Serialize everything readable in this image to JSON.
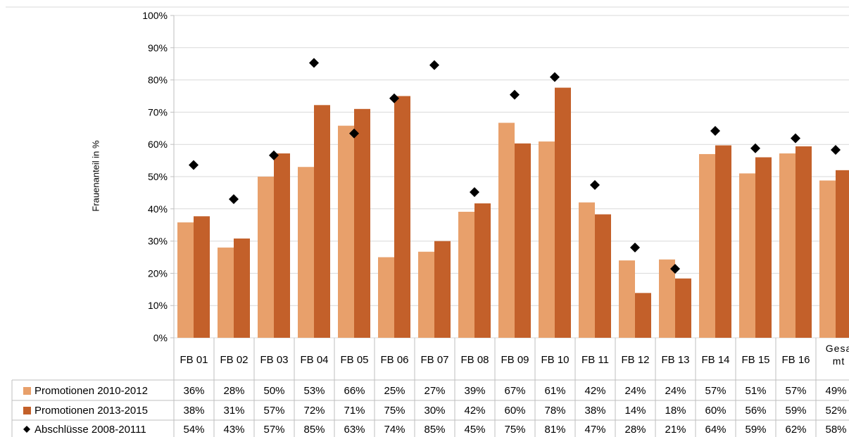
{
  "chart_data": {
    "type": "bar",
    "ylabel": "Frauenanteil in %",
    "ylim": [
      0,
      100
    ],
    "yticks": [
      "0%",
      "10%",
      "20%",
      "30%",
      "40%",
      "50%",
      "60%",
      "70%",
      "80%",
      "90%",
      "100%"
    ],
    "grid": true,
    "categories": [
      "FB 01",
      "FB 02",
      "FB 03",
      "FB 04",
      "FB 05",
      "FB 06",
      "FB 07",
      "FB 08",
      "FB 09",
      "FB 10",
      "FB 11",
      "FB 12",
      "FB 13",
      "FB 14",
      "FB 15",
      "FB 16",
      "Gesamt"
    ],
    "category_display": [
      [
        "FB 01"
      ],
      [
        "FB 02"
      ],
      [
        "FB 03"
      ],
      [
        "FB 04"
      ],
      [
        "FB 05"
      ],
      [
        "FB 06"
      ],
      [
        "FB 07"
      ],
      [
        "FB 08"
      ],
      [
        "FB 09"
      ],
      [
        "FB 10"
      ],
      [
        "FB 11"
      ],
      [
        "FB 12"
      ],
      [
        "FB 13"
      ],
      [
        "FB 14"
      ],
      [
        "FB 15"
      ],
      [
        "FB 16"
      ],
      [
        "Gesa",
        "mt"
      ]
    ],
    "series": [
      {
        "name": "Promotionen 2010-2012",
        "kind": "bar",
        "color": "#E8A06B",
        "values": [
          35.8,
          28.0,
          50.0,
          53.0,
          65.8,
          25.0,
          26.7,
          39.1,
          66.7,
          60.9,
          42.0,
          24.0,
          24.3,
          57.0,
          51.0,
          57.2,
          48.8
        ],
        "labels": [
          "36%",
          "28%",
          "50%",
          "53%",
          "66%",
          "25%",
          "27%",
          "39%",
          "67%",
          "61%",
          "42%",
          "24%",
          "24%",
          "57%",
          "51%",
          "57%",
          "49%"
        ]
      },
      {
        "name": "Promotionen 2013-2015",
        "kind": "bar",
        "color": "#C3602A",
        "values": [
          37.7,
          30.8,
          57.2,
          72.2,
          71.0,
          75.0,
          30.0,
          41.7,
          60.3,
          77.6,
          38.3,
          13.9,
          18.4,
          59.7,
          56.0,
          59.4,
          52.0
        ],
        "labels": [
          "38%",
          "31%",
          "57%",
          "72%",
          "71%",
          "75%",
          "30%",
          "42%",
          "60%",
          "78%",
          "38%",
          "14%",
          "18%",
          "60%",
          "56%",
          "59%",
          "52%"
        ]
      },
      {
        "name": "Abschlüsse 2008-20111",
        "kind": "marker",
        "color": "#000000",
        "values": [
          53.6,
          43.0,
          56.6,
          85.3,
          63.4,
          74.3,
          84.6,
          45.2,
          75.4,
          80.9,
          47.4,
          28.0,
          21.4,
          64.2,
          58.8,
          61.9,
          58.3
        ],
        "labels": [
          "54%",
          "43%",
          "57%",
          "85%",
          "63%",
          "74%",
          "85%",
          "45%",
          "75%",
          "81%",
          "47%",
          "28%",
          "21%",
          "64%",
          "59%",
          "62%",
          "58%"
        ]
      }
    ]
  }
}
